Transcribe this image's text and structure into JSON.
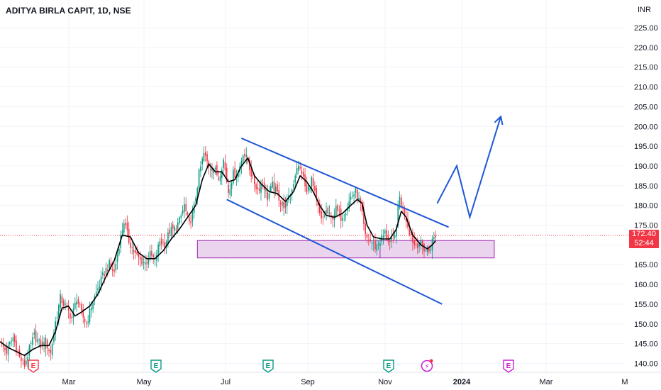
{
  "header": {
    "symbol_title": "ADITYA BIRLA CAPIT, 1D, NSE",
    "currency": "INR"
  },
  "price_badge": {
    "price": "172.40",
    "countdown": "52:44",
    "color": "#f23645"
  },
  "colors": {
    "up_candle": "#089981",
    "down_candle": "#f23645",
    "moving_average": "#000000",
    "trendline": "#1f57d6",
    "zone_fill": "#e8cdea",
    "zone_stroke": "#9c27b0",
    "earnings_marker": "#089981",
    "earnings_past_marker": "#f23645",
    "earnings_future_marker": "#c71fd3",
    "grid": "#f0f3fa"
  },
  "chart_data": {
    "type": "candlestick",
    "title": "ADITYA BIRLA CAPIT, 1D, NSE",
    "y_axis": {
      "ticks": [
        140,
        145,
        150,
        155,
        160,
        165,
        170,
        175,
        180,
        185,
        190,
        195,
        200,
        205,
        210,
        215,
        220,
        225
      ],
      "tick_labels": [
        "140.00",
        "145.00",
        "150.00",
        "155.00",
        "160.00",
        "165.00",
        "170.00",
        "175.00",
        "180.00",
        "185.00",
        "190.00",
        "195.00",
        "200.00",
        "205.00",
        "210.00",
        "215.00",
        "220.00",
        "225.00"
      ],
      "range": [
        138,
        229
      ],
      "unit": "INR"
    },
    "x_axis": {
      "labels": [
        "Mar",
        "May",
        "Jul",
        "Sep",
        "Nov",
        "2024",
        "Mar",
        "M"
      ],
      "bold_labels": [
        "2024"
      ]
    },
    "close_series": [
      [
        0,
        145.0
      ],
      [
        4,
        143.0
      ],
      [
        8,
        146.5
      ],
      [
        12,
        141.5
      ],
      [
        15,
        139.5
      ],
      [
        18,
        143.5
      ],
      [
        21,
        147.0
      ],
      [
        25,
        144.5
      ],
      [
        28,
        145.5
      ],
      [
        31,
        142.5
      ],
      [
        34,
        150.5
      ],
      [
        37,
        156.5
      ],
      [
        40,
        154.5
      ],
      [
        44,
        151.5
      ],
      [
        47,
        156.5
      ],
      [
        50,
        152.5
      ],
      [
        53,
        150.0
      ],
      [
        56,
        154.5
      ],
      [
        60,
        159.0
      ],
      [
        64,
        163.0
      ],
      [
        67,
        165.0
      ],
      [
        70,
        163.0
      ],
      [
        73,
        170.0
      ],
      [
        76,
        176.0
      ],
      [
        79,
        171.0
      ],
      [
        83,
        167.5
      ],
      [
        86,
        166.0
      ],
      [
        89,
        165.5
      ],
      [
        92,
        167.5
      ],
      [
        95,
        166.0
      ],
      [
        98,
        171.0
      ],
      [
        101,
        170.0
      ],
      [
        104,
        173.5
      ],
      [
        107,
        174.0
      ],
      [
        110,
        176.0
      ],
      [
        113,
        180.0
      ],
      [
        116,
        175.0
      ],
      [
        119,
        179.5
      ],
      [
        122,
        188.0
      ],
      [
        125,
        193.0
      ],
      [
        128,
        190.0
      ],
      [
        131,
        189.5
      ],
      [
        134,
        187.0
      ],
      [
        137,
        191.5
      ],
      [
        140,
        183.5
      ],
      [
        143,
        188.0
      ],
      [
        146,
        188.0
      ],
      [
        149,
        193.5
      ],
      [
        152,
        191.0
      ],
      [
        155,
        186.5
      ],
      [
        158,
        184.0
      ],
      [
        161,
        186.0
      ],
      [
        164,
        182.0
      ],
      [
        167,
        185.0
      ],
      [
        170,
        183.0
      ],
      [
        173,
        180.0
      ],
      [
        176,
        180.5
      ],
      [
        179,
        184.0
      ],
      [
        182,
        190.0
      ],
      [
        185,
        188.5
      ],
      [
        188,
        183.0
      ],
      [
        191,
        186.5
      ],
      [
        194,
        181.0
      ],
      [
        197,
        176.0
      ],
      [
        200,
        178.5
      ],
      [
        203,
        176.5
      ],
      [
        206,
        179.0
      ],
      [
        209,
        177.0
      ],
      [
        212,
        179.0
      ],
      [
        215,
        182.0
      ],
      [
        218,
        183.5
      ],
      [
        221,
        180.0
      ],
      [
        224,
        172.0
      ],
      [
        227,
        171.0
      ],
      [
        230,
        169.5
      ],
      [
        233,
        171.0
      ],
      [
        236,
        173.0
      ],
      [
        239,
        170.5
      ],
      [
        242,
        172.0
      ],
      [
        245,
        182.0
      ],
      [
        248,
        178.0
      ],
      [
        251,
        173.5
      ],
      [
        254,
        170.0
      ],
      [
        257,
        170.5
      ],
      [
        260,
        169.0
      ],
      [
        263,
        168.5
      ],
      [
        265,
        171.0
      ],
      [
        267,
        172.4
      ]
    ],
    "moving_average": [
      [
        0,
        145.5
      ],
      [
        5,
        144.0
      ],
      [
        10,
        143.0
      ],
      [
        15,
        142.0
      ],
      [
        20,
        143.5
      ],
      [
        25,
        144.5
      ],
      [
        30,
        144.5
      ],
      [
        34,
        148.0
      ],
      [
        38,
        154.0
      ],
      [
        42,
        154.5
      ],
      [
        46,
        152.0
      ],
      [
        50,
        153.0
      ],
      [
        55,
        154.5
      ],
      [
        60,
        157.5
      ],
      [
        65,
        162.0
      ],
      [
        70,
        166.0
      ],
      [
        75,
        172.5
      ],
      [
        80,
        172.0
      ],
      [
        85,
        168.0
      ],
      [
        90,
        166.5
      ],
      [
        95,
        166.5
      ],
      [
        100,
        168.5
      ],
      [
        105,
        171.5
      ],
      [
        110,
        174.0
      ],
      [
        115,
        177.0
      ],
      [
        120,
        180.0
      ],
      [
        124,
        186.5
      ],
      [
        128,
        190.5
      ],
      [
        132,
        188.5
      ],
      [
        136,
        188.5
      ],
      [
        140,
        186.0
      ],
      [
        144,
        186.5
      ],
      [
        148,
        190.0
      ],
      [
        152,
        192.0
      ],
      [
        156,
        187.5
      ],
      [
        160,
        185.5
      ],
      [
        165,
        183.5
      ],
      [
        170,
        183.0
      ],
      [
        175,
        181.0
      ],
      [
        180,
        183.5
      ],
      [
        184,
        187.5
      ],
      [
        188,
        186.0
      ],
      [
        192,
        183.5
      ],
      [
        196,
        180.0
      ],
      [
        200,
        177.5
      ],
      [
        205,
        177.0
      ],
      [
        210,
        178.0
      ],
      [
        215,
        180.0
      ],
      [
        219,
        181.5
      ],
      [
        222,
        180.5
      ],
      [
        225,
        175.0
      ],
      [
        229,
        172.0
      ],
      [
        234,
        171.5
      ],
      [
        239,
        171.5
      ],
      [
        243,
        174.0
      ],
      [
        246,
        178.5
      ],
      [
        249,
        177.0
      ],
      [
        253,
        172.5
      ],
      [
        258,
        170.0
      ],
      [
        262,
        169.0
      ],
      [
        265,
        170.0
      ],
      [
        267,
        171.0
      ]
    ],
    "last_price": 172.4,
    "drawings": {
      "channel_upper": {
        "from": [
          148,
          197.0
        ],
        "to": [
          275,
          174.5
        ]
      },
      "channel_lower": {
        "from": [
          139,
          181.5
        ],
        "to": [
          271,
          155.0
        ]
      },
      "projection_path": [
        [
          268,
          180.5
        ],
        [
          280,
          190.0
        ],
        [
          288,
          177.0
        ],
        [
          307,
          202.5
        ]
      ],
      "demand_zone": {
        "x_start": 121,
        "x_end": 303,
        "y_low": 166.7,
        "y_high": 171.1
      }
    },
    "event_markers": [
      {
        "symbol": "E",
        "kind": "earnings-past"
      },
      {
        "symbol": "E",
        "kind": "earnings"
      },
      {
        "symbol": "E",
        "kind": "earnings"
      },
      {
        "symbol": "E",
        "kind": "earnings"
      },
      {
        "symbol": "⚡",
        "kind": "dividend"
      },
      {
        "symbol": "E",
        "kind": "earnings-upcoming"
      }
    ]
  }
}
